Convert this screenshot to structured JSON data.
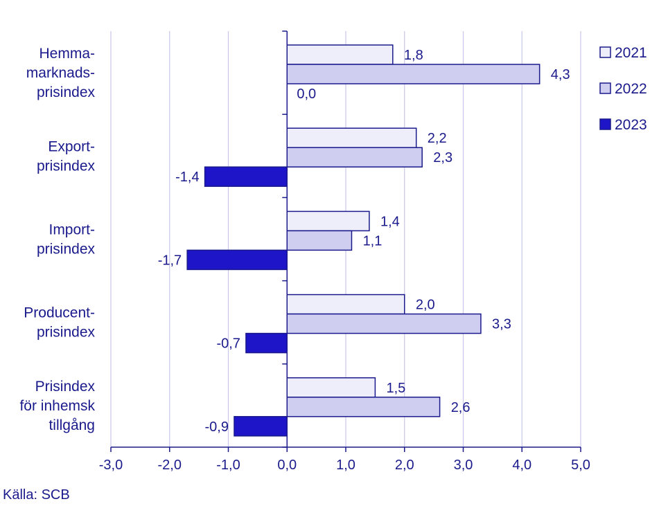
{
  "chart_data": {
    "type": "bar",
    "orientation": "horizontal",
    "categories": [
      [
        "Hemma-",
        "marknads-",
        "prisindex"
      ],
      [
        "Export-",
        "prisindex"
      ],
      [
        "Import-",
        "prisindex"
      ],
      [
        "Producent-",
        "prisindex"
      ],
      [
        "Prisindex",
        "för inhemsk",
        "tillgång"
      ]
    ],
    "series": [
      {
        "name": "2021",
        "color": "#eeeefb",
        "values": [
          1.8,
          2.2,
          1.4,
          2.0,
          1.5
        ],
        "labels": [
          "1,8",
          "2,2",
          "1,4",
          "2,0",
          "1,5"
        ]
      },
      {
        "name": "2022",
        "color": "#cfcdf0",
        "values": [
          4.3,
          2.3,
          1.1,
          3.3,
          2.6
        ],
        "labels": [
          "4,3",
          "2,3",
          "1,1",
          "3,3",
          "2,6"
        ]
      },
      {
        "name": "2023",
        "color": "#1e14c8",
        "values": [
          0.0,
          -1.4,
          -1.7,
          -0.7,
          -0.9
        ],
        "labels": [
          "0,0",
          "-1,4",
          "-1,7",
          "-0,7",
          "-0,9"
        ]
      }
    ],
    "xlim": [
      -3.0,
      5.0
    ],
    "xticks": [
      -3.0,
      -2.0,
      -1.0,
      0.0,
      1.0,
      2.0,
      3.0,
      4.0,
      5.0
    ],
    "xtick_labels": [
      "-3,0",
      "-2,0",
      "-1,0",
      "0,0",
      "1,0",
      "2,0",
      "3,0",
      "4,0",
      "5,0"
    ],
    "grid": "vertical",
    "legend_position": "top-right",
    "bar_edge_color": "#1a1a8c",
    "text_color": "#1a1a8c",
    "grid_color": "#c8c6ea"
  },
  "source": "Källa: SCB"
}
